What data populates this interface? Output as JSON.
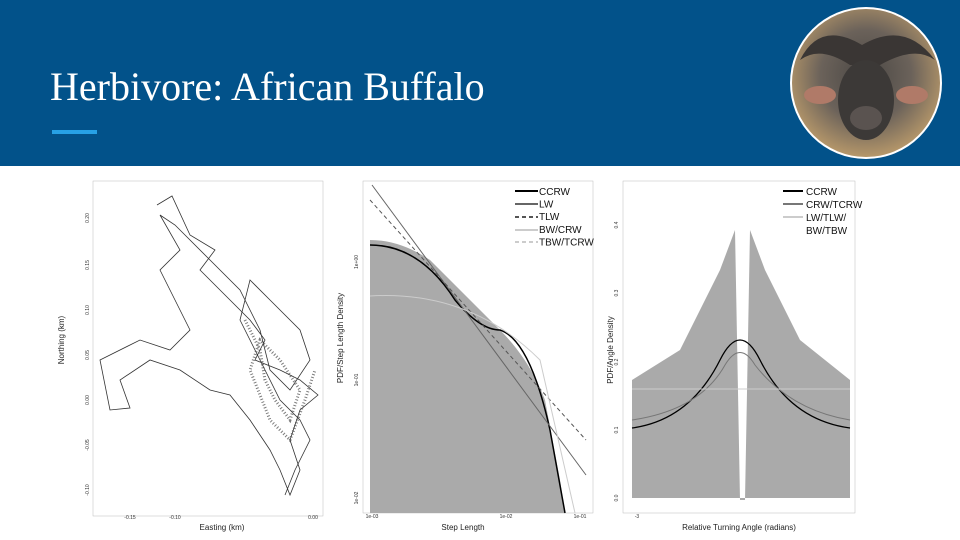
{
  "header": {
    "title": "Herbivore: African Buffalo"
  },
  "panels": [
    {
      "x_label": "Easting (km)",
      "y_label": "Northing (km)",
      "x_ticks": [
        "-0.15",
        "-0.10",
        "0.00"
      ],
      "y_ticks": [
        "0.20",
        "0.15",
        "0.10",
        "0.05",
        "0.00",
        "-0.05",
        "-0.10"
      ]
    },
    {
      "x_label": "Step Length",
      "y_label": "PDF/Step Length Density",
      "x_ticks": [
        "1e-03",
        "1e-02",
        "1e-01"
      ],
      "y_ticks": [
        "1e+00",
        "1e-01",
        "1e-02"
      ],
      "legend": [
        "CCRW",
        "LW",
        "TLW",
        "BW/CRW",
        "TBW/TCRW"
      ]
    },
    {
      "x_label": "Relative Turning Angle (radians)",
      "y_label": "PDF/Angle Density",
      "x_ticks": [
        "-3"
      ],
      "y_ticks": [
        "0.4",
        "0.3",
        "0.2",
        "0.1",
        "0.0"
      ],
      "legend": [
        "CCRW",
        "CRW/TCRW",
        "LW/TLW/",
        "BW/TBW"
      ]
    }
  ]
}
